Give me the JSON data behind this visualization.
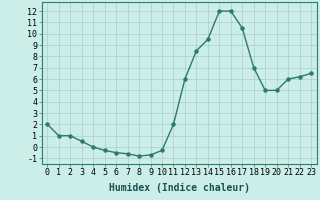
{
  "x": [
    0,
    1,
    2,
    3,
    4,
    5,
    6,
    7,
    8,
    9,
    10,
    11,
    12,
    13,
    14,
    15,
    16,
    17,
    18,
    19,
    20,
    21,
    22,
    23
  ],
  "y": [
    2,
    1,
    1,
    0.5,
    0,
    -0.3,
    -0.5,
    -0.6,
    -0.8,
    -0.7,
    -0.3,
    2,
    6,
    8.5,
    9.5,
    12,
    12,
    10.5,
    7,
    5,
    5,
    6,
    6.2,
    6.5
  ],
  "line_color": "#2d7a6e",
  "marker": "o",
  "marker_size": 2.2,
  "line_width": 1.0,
  "bg_color": "#cceee8",
  "grid_color": "#aacccc",
  "xlabel": "Humidex (Indice chaleur)",
  "xlabel_fontsize": 7,
  "tick_fontsize": 6,
  "ylim": [
    -1.5,
    12.8
  ],
  "xlim": [
    -0.5,
    23.5
  ],
  "yticks": [
    -1,
    0,
    1,
    2,
    3,
    4,
    5,
    6,
    7,
    8,
    9,
    10,
    11,
    12
  ],
  "xticks": [
    0,
    1,
    2,
    3,
    4,
    5,
    6,
    7,
    8,
    9,
    10,
    11,
    12,
    13,
    14,
    15,
    16,
    17,
    18,
    19,
    20,
    21,
    22,
    23
  ]
}
